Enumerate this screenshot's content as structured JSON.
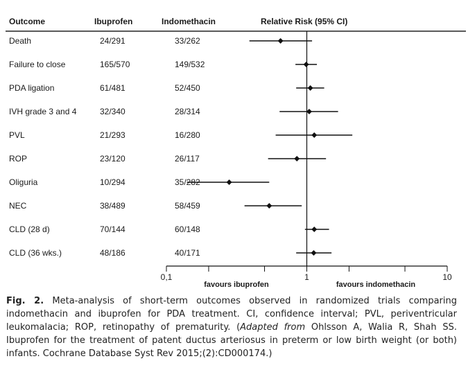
{
  "chart_data": {
    "type": "forest",
    "headers": {
      "outcome": "Outcome",
      "group1": "Ibuprofen",
      "group2": "Indomethacin",
      "effect": "Relative Risk (95% CI)"
    },
    "rows": [
      {
        "outcome": "Death",
        "ibuprofen": "24/291",
        "indomethacin": "33/262",
        "rr": 0.65,
        "ci": [
          0.39,
          1.09
        ]
      },
      {
        "outcome": "Failure to close",
        "ibuprofen": "165/570",
        "indomethacin": "149/532",
        "rr": 0.99,
        "ci": [
          0.83,
          1.18
        ]
      },
      {
        "outcome": "PDA ligation",
        "ibuprofen": "61/481",
        "indomethacin": "52/450",
        "rr": 1.06,
        "ci": [
          0.84,
          1.33
        ]
      },
      {
        "outcome": "IVH grade 3 and 4",
        "ibuprofen": "32/340",
        "indomethacin": "28/314",
        "rr": 1.04,
        "ci": [
          0.64,
          1.67
        ]
      },
      {
        "outcome": "PVL",
        "ibuprofen": "21/293",
        "indomethacin": "16/280",
        "rr": 1.13,
        "ci": [
          0.6,
          2.11
        ]
      },
      {
        "outcome": "ROP",
        "ibuprofen": "23/120",
        "indomethacin": "26/117",
        "rr": 0.85,
        "ci": [
          0.53,
          1.37
        ]
      },
      {
        "outcome": "Oliguria",
        "ibuprofen": "10/294",
        "indomethacin": "35/282",
        "rr": 0.28,
        "ci": [
          0.14,
          0.54
        ]
      },
      {
        "outcome": "NEC",
        "ibuprofen": "38/489",
        "indomethacin": "58/459",
        "rr": 0.54,
        "ci": [
          0.36,
          0.92
        ]
      },
      {
        "outcome": "CLD (28 d)",
        "ibuprofen": "70/144",
        "indomethacin": "60/148",
        "rr": 1.13,
        "ci": [
          0.97,
          1.44
        ]
      },
      {
        "outcome": "CLD (36 wks.)",
        "ibuprofen": "48/186",
        "indomethacin": "40/171",
        "rr": 1.12,
        "ci": [
          0.84,
          1.5
        ]
      }
    ],
    "x_axis": {
      "scale": "log",
      "range": [
        0.1,
        10
      ],
      "tick_labels": [
        "0,1",
        "1",
        "10"
      ],
      "reference_line": 1
    },
    "favours": {
      "left": "favours ibuprofen",
      "right": "favours indomethacin"
    }
  },
  "caption": {
    "label": "Fig. 2.",
    "text_1": " Meta-analysis of short-term outcomes observed in randomized trials comparing indomethacin and ibuprofen for PDA treatment. CI, confidence interval; PVL, periventricular leukomalacia; ROP, retinopathy of prematurity. (",
    "adapted": "Adapted from",
    "text_2": " Ohlsson A, Walia R, Shah SS. Ibuprofen for the treatment of patent ductus arteriosus in preterm or low birth weight (or both) infants. Cochrane Database Syst Rev 2015;(2):CD000174.)"
  }
}
